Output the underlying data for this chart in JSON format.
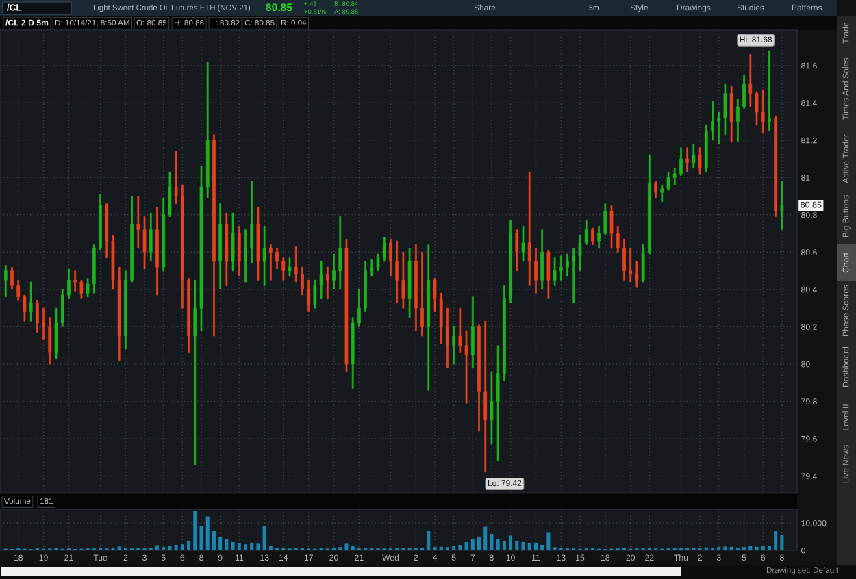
{
  "chart_data": [
    {
      "type": "candlestick",
      "title": "/CL 2 D 5m",
      "categories": [
        null,
        null,
        null,
        null,
        null,
        null,
        null,
        null,
        null,
        null,
        null,
        null,
        null,
        null,
        null,
        null,
        null,
        null,
        null,
        null,
        null,
        null,
        null,
        null,
        null,
        null,
        null,
        null,
        null,
        null,
        null,
        null,
        null,
        null,
        null,
        null,
        null,
        null,
        null,
        null,
        null,
        null,
        null,
        null,
        null,
        null,
        null,
        null,
        null,
        null,
        null,
        null,
        null,
        null,
        null,
        null,
        null,
        null,
        null,
        null,
        null,
        null,
        null,
        null,
        null,
        null,
        null,
        null,
        null,
        null,
        null,
        null,
        null,
        null,
        null,
        null,
        null,
        null,
        null,
        null,
        null,
        null,
        null,
        null,
        null,
        null,
        null,
        null,
        null,
        null,
        null,
        null,
        null,
        null,
        null,
        null,
        null,
        null,
        null,
        null,
        null,
        null,
        null,
        null,
        null,
        null,
        null,
        null,
        null,
        null,
        null,
        null,
        null,
        null,
        null,
        null,
        null,
        null,
        null,
        null,
        null,
        null,
        null,
        null
      ],
      "ohlc": [
        [
          80.45,
          80.53,
          80.36,
          80.5
        ],
        [
          80.5,
          80.52,
          80.4,
          80.42
        ],
        [
          80.42,
          80.45,
          80.34,
          80.36
        ],
        [
          80.36,
          80.37,
          80.23,
          80.28
        ],
        [
          80.28,
          80.44,
          80.23,
          80.33
        ],
        [
          80.33,
          80.34,
          80.17,
          80.22
        ],
        [
          80.22,
          80.3,
          80.13,
          80.2
        ],
        [
          80.2,
          80.25,
          80.0,
          80.06
        ],
        [
          80.06,
          80.3,
          80.03,
          80.22
        ],
        [
          80.22,
          80.4,
          80.2,
          80.37
        ],
        [
          80.37,
          80.51,
          80.35,
          80.45
        ],
        [
          80.45,
          80.5,
          80.39,
          80.44
        ],
        [
          80.44,
          80.45,
          80.35,
          80.38
        ],
        [
          80.38,
          80.46,
          80.36,
          80.43
        ],
        [
          80.43,
          80.64,
          80.38,
          80.62
        ],
        [
          80.62,
          80.91,
          80.61,
          80.85
        ],
        [
          80.85,
          80.86,
          80.57,
          80.66
        ],
        [
          80.66,
          80.69,
          80.4,
          80.45
        ],
        [
          80.45,
          80.52,
          80.02,
          80.15
        ],
        [
          80.15,
          80.5,
          80.08,
          80.45
        ],
        [
          80.45,
          80.9,
          80.44,
          80.75
        ],
        [
          80.75,
          80.9,
          80.62,
          80.72
        ],
        [
          80.72,
          80.79,
          80.51,
          80.6
        ],
        [
          80.6,
          80.81,
          80.55,
          80.72
        ],
        [
          80.72,
          80.84,
          80.37,
          80.52
        ],
        [
          80.52,
          80.89,
          80.5,
          80.8
        ],
        [
          80.8,
          81.03,
          80.79,
          80.95
        ],
        [
          80.95,
          81.14,
          80.86,
          80.9
        ],
        [
          80.9,
          80.96,
          80.3,
          80.45
        ],
        [
          80.45,
          80.46,
          80.06,
          80.15
        ],
        [
          80.15,
          80.45,
          79.46,
          80.3
        ],
        [
          80.3,
          81.06,
          80.18,
          80.95
        ],
        [
          80.95,
          81.62,
          80.89,
          81.2
        ],
        [
          81.2,
          81.23,
          80.15,
          80.55
        ],
        [
          80.55,
          80.86,
          80.4,
          80.75
        ],
        [
          80.75,
          80.81,
          80.42,
          80.55
        ],
        [
          80.55,
          80.81,
          80.5,
          80.7
        ],
        [
          80.7,
          80.74,
          80.47,
          80.55
        ],
        [
          80.55,
          80.72,
          80.44,
          80.62
        ],
        [
          80.62,
          80.98,
          80.54,
          80.75
        ],
        [
          80.75,
          80.84,
          80.45,
          80.55
        ],
        [
          80.55,
          80.74,
          80.42,
          80.62
        ],
        [
          80.62,
          80.64,
          80.45,
          80.6
        ],
        [
          80.6,
          80.62,
          80.51,
          80.55
        ],
        [
          80.55,
          80.57,
          80.45,
          80.5
        ],
        [
          80.5,
          80.57,
          80.47,
          80.52
        ],
        [
          80.52,
          80.63,
          80.44,
          80.48
        ],
        [
          80.48,
          80.52,
          80.37,
          80.4
        ],
        [
          80.4,
          80.45,
          80.28,
          80.32
        ],
        [
          80.32,
          80.45,
          80.3,
          80.42
        ],
        [
          80.42,
          80.55,
          80.35,
          80.48
        ],
        [
          80.48,
          80.52,
          80.35,
          80.45
        ],
        [
          80.45,
          80.59,
          80.4,
          80.5
        ],
        [
          80.5,
          80.79,
          80.4,
          80.62
        ],
        [
          80.62,
          80.67,
          79.96,
          80.0
        ],
        [
          80.0,
          80.25,
          79.87,
          80.22
        ],
        [
          80.22,
          80.4,
          80.2,
          80.3
        ],
        [
          80.3,
          80.55,
          80.28,
          80.5
        ],
        [
          80.5,
          80.56,
          80.47,
          80.52
        ],
        [
          80.52,
          80.59,
          80.5,
          80.57
        ],
        [
          80.57,
          80.68,
          80.55,
          80.65
        ],
        [
          80.65,
          80.67,
          80.47,
          80.55
        ],
        [
          80.55,
          80.66,
          80.33,
          80.45
        ],
        [
          80.45,
          80.6,
          80.3,
          80.35
        ],
        [
          80.35,
          80.62,
          80.25,
          80.55
        ],
        [
          80.55,
          80.64,
          80.18,
          80.3
        ],
        [
          80.3,
          80.6,
          80.15,
          80.2
        ],
        [
          80.2,
          80.64,
          79.86,
          80.45
        ],
        [
          80.45,
          80.46,
          80.28,
          80.35
        ],
        [
          80.35,
          80.38,
          80.11,
          80.2
        ],
        [
          80.2,
          80.3,
          79.98,
          80.1
        ],
        [
          80.1,
          80.2,
          80.0,
          80.15
        ],
        [
          80.15,
          80.3,
          80.06,
          80.1
        ],
        [
          80.1,
          80.18,
          79.79,
          80.05
        ],
        [
          80.05,
          80.36,
          79.98,
          80.2
        ],
        [
          80.2,
          80.21,
          79.64,
          79.85
        ],
        [
          79.85,
          80.23,
          79.42,
          79.7
        ],
        [
          79.7,
          79.96,
          79.57,
          79.8
        ],
        [
          79.8,
          80.1,
          79.48,
          79.95
        ],
        [
          79.95,
          80.42,
          79.91,
          80.35
        ],
        [
          80.35,
          80.77,
          80.33,
          80.7
        ],
        [
          80.7,
          80.72,
          80.5,
          80.6
        ],
        [
          80.6,
          80.74,
          80.55,
          80.65
        ],
        [
          80.65,
          81.03,
          80.42,
          80.55
        ],
        [
          80.55,
          80.62,
          80.38,
          80.45
        ],
        [
          80.45,
          80.72,
          80.4,
          80.6
        ],
        [
          80.6,
          80.61,
          80.35,
          80.45
        ],
        [
          80.45,
          80.57,
          80.42,
          80.5
        ],
        [
          80.5,
          80.58,
          80.45,
          80.52
        ],
        [
          80.52,
          80.59,
          80.47,
          80.55
        ],
        [
          80.55,
          80.62,
          80.33,
          80.58
        ],
        [
          80.58,
          80.69,
          80.5,
          80.65
        ],
        [
          80.65,
          80.77,
          80.64,
          80.72
        ],
        [
          80.72,
          80.73,
          80.64,
          80.66
        ],
        [
          80.66,
          80.74,
          80.62,
          80.7
        ],
        [
          80.7,
          80.86,
          80.69,
          80.82
        ],
        [
          80.82,
          80.85,
          80.62,
          80.7
        ],
        [
          80.7,
          80.74,
          80.6,
          80.62
        ],
        [
          80.62,
          80.67,
          80.45,
          80.5
        ],
        [
          80.5,
          80.62,
          80.44,
          80.48
        ],
        [
          80.48,
          80.55,
          80.41,
          80.45
        ],
        [
          80.45,
          80.64,
          80.44,
          80.6
        ],
        [
          80.6,
          81.12,
          80.59,
          80.97
        ],
        [
          80.97,
          80.98,
          80.89,
          80.92
        ],
        [
          80.92,
          80.96,
          80.87,
          80.94
        ],
        [
          80.94,
          81.03,
          80.93,
          81.0
        ],
        [
          81.0,
          81.05,
          80.96,
          81.02
        ],
        [
          81.02,
          81.16,
          81.01,
          81.1
        ],
        [
          81.1,
          81.16,
          81.03,
          81.08
        ],
        [
          81.08,
          81.18,
          81.05,
          81.12
        ],
        [
          81.12,
          81.16,
          81.02,
          81.05
        ],
        [
          81.05,
          81.28,
          81.03,
          81.25
        ],
        [
          81.25,
          81.41,
          81.2,
          81.3
        ],
        [
          81.3,
          81.35,
          81.18,
          81.32
        ],
        [
          81.32,
          81.5,
          81.23,
          81.45
        ],
        [
          81.45,
          81.49,
          81.19,
          81.3
        ],
        [
          81.3,
          81.42,
          81.19,
          81.38
        ],
        [
          81.38,
          81.55,
          81.37,
          81.5
        ],
        [
          81.5,
          81.66,
          81.38,
          81.45
        ],
        [
          81.45,
          81.46,
          81.28,
          81.35
        ],
        [
          81.35,
          81.47,
          81.24,
          81.3
        ],
        [
          81.3,
          81.68,
          81.25,
          81.32
        ],
        [
          81.32,
          81.33,
          80.79,
          80.82
        ],
        [
          80.82,
          80.98,
          80.72,
          80.85
        ]
      ],
      "colors": [
        "#1fb41f",
        "#e8421e",
        "#e8421e",
        "#e8421e",
        "#1fb41f",
        "#e8421e",
        "#e8421e",
        "#e8421e",
        "#1fb41f",
        "#1fb41f",
        "#1fb41f",
        "#e8421e",
        "#e8421e",
        "#1fb41f",
        "#1fb41f",
        "#1fb41f",
        "#e8421e",
        "#e8421e",
        "#e8421e",
        "#1fb41f",
        "#1fb41f",
        "#e8421e",
        "#e8421e",
        "#1fb41f",
        "#e8421e",
        "#1fb41f",
        "#1fb41f",
        "#e8421e",
        "#e8421e",
        "#e8421e",
        "#1fb41f",
        "#1fb41f",
        "#1fb41f",
        "#e8421e",
        "#1fb41f",
        "#e8421e",
        "#1fb41f",
        "#e8421e",
        "#1fb41f",
        "#1fb41f",
        "#e8421e",
        "#1fb41f",
        "#e8421e",
        "#e8421e",
        "#e8421e",
        "#1fb41f",
        "#e8421e",
        "#e8421e",
        "#e8421e",
        "#1fb41f",
        "#1fb41f",
        "#e8421e",
        "#1fb41f",
        "#1fb41f",
        "#e8421e",
        "#1fb41f",
        "#1fb41f",
        "#1fb41f",
        "#1fb41f",
        "#1fb41f",
        "#1fb41f",
        "#e8421e",
        "#e8421e",
        "#e8421e",
        "#1fb41f",
        "#e8421e",
        "#e8421e",
        "#1fb41f",
        "#e8421e",
        "#e8421e",
        "#e8421e",
        "#1fb41f",
        "#e8421e",
        "#e8421e",
        "#1fb41f",
        "#e8421e",
        "#e8421e",
        "#1fb41f",
        "#1fb41f",
        "#1fb41f",
        "#1fb41f",
        "#e8421e",
        "#1fb41f",
        "#e8421e",
        "#e8421e",
        "#1fb41f",
        "#e8421e",
        "#1fb41f",
        "#1fb41f",
        "#1fb41f",
        "#1fb41f",
        "#1fb41f",
        "#1fb41f",
        "#e8421e",
        "#1fb41f",
        "#1fb41f",
        "#e8421e",
        "#e8421e",
        "#e8421e",
        "#e8421e",
        "#e8421e",
        "#1fb41f",
        "#1fb41f",
        "#e8421e",
        "#1fb41f",
        "#1fb41f",
        "#1fb41f",
        "#1fb41f",
        "#e8421e",
        "#1fb41f",
        "#e8421e",
        "#1fb41f",
        "#1fb41f",
        "#1fb41f",
        "#1fb41f",
        "#e8421e",
        "#1fb41f",
        "#1fb41f",
        "#e8421e",
        "#e8421e",
        "#e8421e",
        "#1fb41f",
        "#e8421e",
        "#1fb41f"
      ],
      "ylim": [
        79.31,
        81.79
      ],
      "yticks": [
        79.4,
        79.6,
        79.8,
        80,
        80.2,
        80.4,
        80.6,
        80.8,
        81,
        81.2,
        81.4,
        81.6
      ],
      "grid": true,
      "tick_labels": "y",
      "annotations": [
        "/CL",
        "Light Sweet Crude Oil Futures,ETH (NOV 21)",
        "80.85",
        "+.41",
        "+0.51%",
        "B: 80.84",
        "A: 80.85",
        "Share",
        "5m",
        "Style",
        "Drawings",
        "Studies",
        "Patterns",
        "D: 10/14/21, 8:50 AM",
        "O: 80.85",
        "H: 80.86",
        "L: 80.82",
        "C: 80.85",
        "R: 0.04",
        "Trade",
        "Times And Sales",
        "Active Trader",
        "Big Buttons",
        "Chart",
        "Phase Scores",
        "Dashboard",
        "Level II",
        "Live News",
        "Drawing set: Default",
        "Lo: 79.42",
        {
          "text": "Hi: 81.68",
          "y": 81.68
        },
        {
          "text": "80.85",
          "y": 80.85
        }
      ]
    },
    {
      "type": "bar",
      "title": "Volume",
      "categories": [
        null,
        null,
        "18",
        null,
        null,
        null,
        "19",
        null,
        null,
        null,
        "21",
        null,
        null,
        null,
        null,
        "Tue",
        null,
        null,
        null,
        "2",
        null,
        null,
        "3",
        null,
        null,
        "5",
        null,
        null,
        "6",
        null,
        null,
        "8",
        null,
        null,
        "9",
        null,
        null,
        "11",
        null,
        null,
        null,
        "13",
        null,
        null,
        "14",
        null,
        null,
        null,
        "17",
        null,
        null,
        null,
        "20",
        null,
        null,
        null,
        "21",
        null,
        null,
        null,
        null,
        "Wed",
        null,
        null,
        null,
        "2",
        null,
        null,
        "4",
        null,
        null,
        "5",
        null,
        null,
        "7",
        null,
        null,
        "8",
        null,
        null,
        "10",
        null,
        null,
        null,
        "11",
        null,
        null,
        null,
        "13",
        null,
        null,
        "15",
        null,
        null,
        null,
        "18",
        null,
        null,
        null,
        "20",
        null,
        null,
        "22",
        null,
        null,
        null,
        null,
        "Thu",
        null,
        null,
        "2",
        null,
        null,
        "3",
        null,
        null,
        null,
        "5",
        null,
        null,
        "6",
        null,
        null,
        "8"
      ],
      "values": [
        600,
        500,
        700,
        600,
        500,
        800,
        600,
        700,
        900,
        600,
        700,
        500,
        600,
        700,
        700,
        800,
        700,
        900,
        1400,
        900,
        700,
        800,
        900,
        1000,
        1600,
        1200,
        1500,
        1800,
        2200,
        3500,
        14500,
        9000,
        12400,
        7000,
        5000,
        4000,
        3000,
        2500,
        2200,
        2800,
        2400,
        9000,
        1500,
        900,
        800,
        700,
        900,
        800,
        700,
        600,
        800,
        700,
        900,
        1200,
        2400,
        1500,
        900,
        800,
        1000,
        900,
        800,
        700,
        900,
        1000,
        800,
        900,
        1000,
        7000,
        1200,
        1300,
        1200,
        1500,
        2000,
        3000,
        4000,
        5000,
        8600,
        6000,
        4000,
        3500,
        5400,
        3500,
        3000,
        2500,
        2800,
        2000,
        6400,
        1200,
        900,
        800,
        700,
        600,
        700,
        800,
        600,
        500,
        600,
        700,
        800,
        600,
        700,
        800,
        900,
        700,
        600,
        700,
        800,
        900,
        1000,
        800,
        900,
        1100,
        1000,
        1200,
        1400,
        1300,
        1000,
        1200,
        1500,
        1300,
        1500,
        1500,
        7000,
        5600
      ],
      "color": "#1a85b0",
      "ylim": [
        0,
        15000
      ],
      "yticks": [
        0,
        {
          "value": 10000,
          "label": "10,000"
        }
      ],
      "grid": true,
      "annotations": [
        "181"
      ]
    }
  ]
}
